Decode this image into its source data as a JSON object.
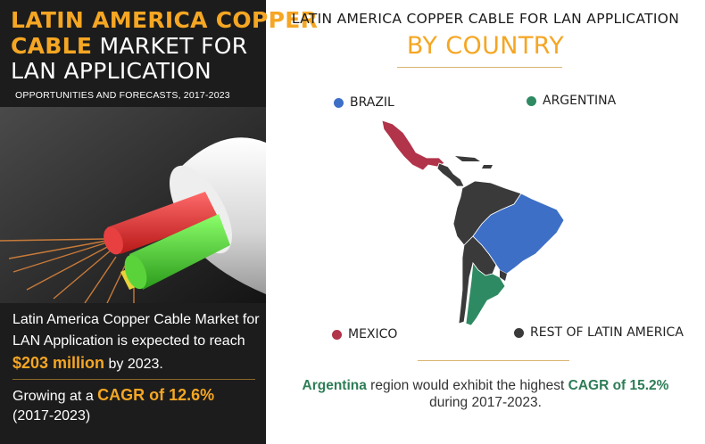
{
  "left": {
    "title": {
      "line1": "LATIN AMERICA COPPER",
      "line2_bold": "CABLE",
      "line2_rest": " MARKET FOR",
      "line3": "LAN APPLICATION"
    },
    "subtitle": "OPPORTUNITIES AND FORECASTS, 2017-2023",
    "summary": {
      "line1": "Latin America Copper Cable Market for",
      "line2": "LAN Application is expected to reach",
      "value": "$203 million",
      "value_suffix": " by 2023.",
      "growth_prefix": "Growing at a ",
      "cagr": "CAGR of 12.6%",
      "period": "(2017-2023)"
    }
  },
  "right": {
    "title": "LATIN AMERICA COPPER CABLE FOR LAN APPLICATION",
    "subtitle": "BY COUNTRY",
    "legend": [
      {
        "label": "BRAZIL",
        "color": "#3d6fc6"
      },
      {
        "label": "ARGENTINA",
        "color": "#2e8a62"
      },
      {
        "label": "MEXICO",
        "color": "#b1344a"
      },
      {
        "label": "REST OF LATIN AMERICA",
        "color": "#3a3a3a"
      }
    ],
    "note": {
      "country": "Argentina",
      "mid": " region would exhibit the highest ",
      "cagr": "CAGR of 15.2%",
      "line2": "during 2017-2023."
    }
  },
  "colors": {
    "accent": "#f5a623",
    "brazil": "#3d6fc6",
    "argentina": "#2e8a62",
    "mexico": "#b1344a",
    "rest": "#3a3a3a"
  }
}
